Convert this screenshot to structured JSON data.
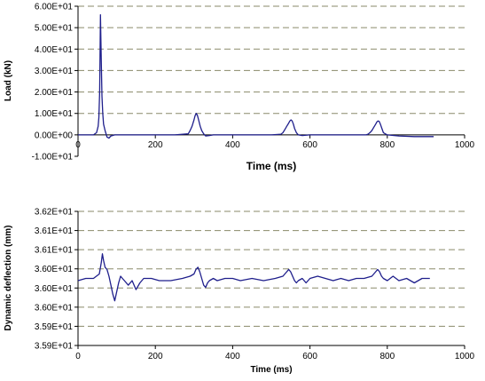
{
  "chart_data": [
    {
      "type": "line",
      "title": "",
      "xlabel": "Time (ms)",
      "ylabel": "Load (kN)",
      "xlim": [
        0,
        1000
      ],
      "ylim": [
        -10,
        60
      ],
      "grid": "horizontal-dashed",
      "legend": "none",
      "line_color": "#1f1f8c",
      "x_ticks": [
        "0",
        "200",
        "400",
        "600",
        "800",
        "1000"
      ],
      "y_ticks": [
        "-1.00E+01",
        "0.00E+00",
        "1.00E+01",
        "2.00E+01",
        "3.00E+01",
        "4.00E+01",
        "5.00E+01",
        "6.00E+01"
      ],
      "series": [
        {
          "x": [
            0,
            40,
            48,
            52,
            54,
            56,
            57,
            58,
            60,
            62,
            64,
            66,
            70,
            75,
            80,
            85,
            95,
            110,
            130,
            180,
            250,
            285,
            290,
            295,
            300,
            303,
            306,
            309,
            312,
            316,
            320,
            325,
            330,
            340,
            350,
            400,
            500,
            525,
            530,
            535,
            540,
            545,
            548,
            551,
            554,
            557,
            560,
            565,
            570,
            580,
            600,
            700,
            745,
            750,
            755,
            760,
            765,
            770,
            773,
            776,
            779,
            782,
            786,
            790,
            800,
            830,
            870,
            920
          ],
          "y": [
            0,
            0,
            1,
            4,
            8,
            20,
            40,
            56,
            35,
            18,
            10,
            5,
            2,
            -1,
            -1.5,
            -0.5,
            0,
            0,
            0,
            0,
            0,
            0.5,
            2,
            4,
            7,
            9,
            10,
            9,
            7,
            4,
            2,
            0.5,
            -0.5,
            -0.3,
            0,
            0,
            0,
            0.3,
            1,
            2.5,
            4,
            5.5,
            6.5,
            7,
            6.5,
            5,
            3,
            1,
            0,
            -0.3,
            0,
            0,
            0,
            0.3,
            1,
            2,
            3.5,
            5,
            6,
            6.5,
            6.3,
            5,
            3,
            1,
            0,
            -0.5,
            -0.8,
            -0.8
          ]
        }
      ]
    },
    {
      "type": "line",
      "title": "",
      "xlabel": "Time (ms)",
      "ylabel": "Dynamic deflection (mm)",
      "xlim": [
        0,
        1000
      ],
      "ylim": [
        0,
        6
      ],
      "grid": "horizontal-dashed",
      "legend": "none",
      "line_color": "#1f1f8c",
      "x_ticks": [
        "0",
        "200",
        "400",
        "600",
        "800",
        "1000"
      ],
      "y_ticks": [
        "3.59E+01",
        "3.59E+01",
        "3.60E+01",
        "3.60E+01",
        "3.60E+01",
        "3.61E+01",
        "3.61E+01",
        "3.62E+01"
      ],
      "series": [
        {
          "x": [
            0,
            20,
            40,
            55,
            60,
            63,
            66,
            70,
            75,
            80,
            85,
            90,
            95,
            100,
            105,
            110,
            115,
            120,
            130,
            140,
            150,
            160,
            170,
            190,
            210,
            240,
            270,
            290,
            300,
            305,
            310,
            315,
            320,
            325,
            330,
            335,
            340,
            350,
            360,
            380,
            400,
            420,
            450,
            480,
            510,
            530,
            540,
            545,
            550,
            555,
            560,
            565,
            570,
            580,
            590,
            600,
            620,
            640,
            660,
            680,
            700,
            720,
            740,
            760,
            770,
            775,
            780,
            785,
            790,
            800,
            815,
            830,
            850,
            870,
            890,
            910
          ],
          "y": [
            2.9,
            3.0,
            3.0,
            3.2,
            3.7,
            4.1,
            3.8,
            3.5,
            3.4,
            3.1,
            2.7,
            2.3,
            2.0,
            2.4,
            2.8,
            3.1,
            3.0,
            2.9,
            2.7,
            2.9,
            2.5,
            2.8,
            3.0,
            3.0,
            2.9,
            2.9,
            3.0,
            3.1,
            3.2,
            3.4,
            3.5,
            3.3,
            3.0,
            2.7,
            2.6,
            2.8,
            2.9,
            3.0,
            2.9,
            3.0,
            3.0,
            2.9,
            3.0,
            2.9,
            3.0,
            3.1,
            3.3,
            3.4,
            3.3,
            3.1,
            2.9,
            2.8,
            2.9,
            3.0,
            2.8,
            3.0,
            3.1,
            3.0,
            2.9,
            3.0,
            2.9,
            3.0,
            3.0,
            3.1,
            3.3,
            3.4,
            3.3,
            3.1,
            3.0,
            2.9,
            3.1,
            2.9,
            3.0,
            2.8,
            3.0,
            3.0
          ]
        }
      ]
    }
  ]
}
